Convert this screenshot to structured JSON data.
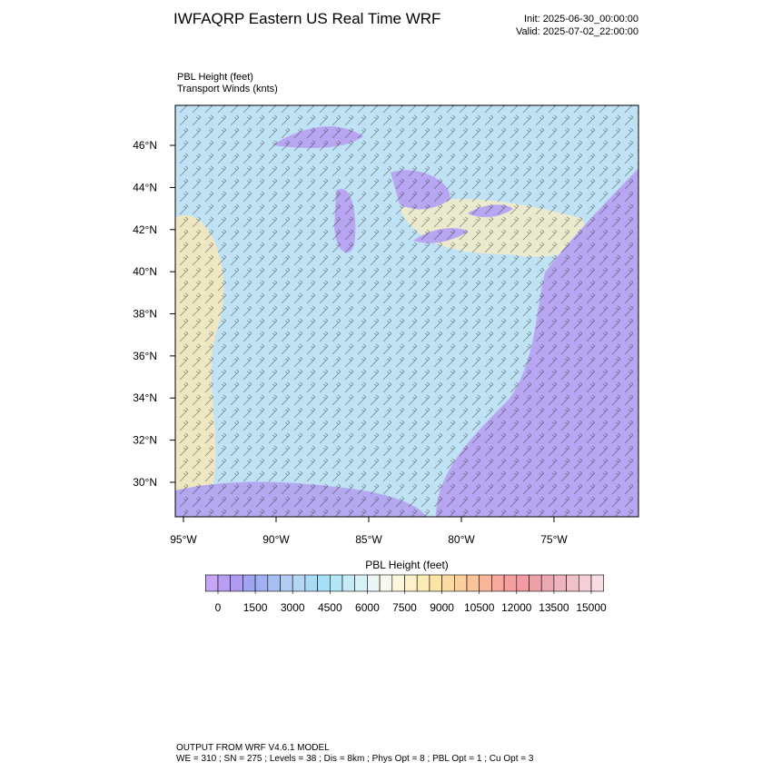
{
  "header": {
    "title": "IWFAQRP Eastern US Real Time WRF",
    "init": "Init: 2025-06-30_00:00:00",
    "valid": "Valid: 2025-07-02_22:00:00"
  },
  "map": {
    "field_label": "PBL Height   (feet)",
    "wind_label": "Transport Winds   (knts)",
    "xlim": [
      -95.44,
      -70.44
    ],
    "ylim": [
      28.36,
      47.9
    ],
    "xticks": [
      {
        "value": -95,
        "label": "95°W"
      },
      {
        "value": -90,
        "label": "90°W"
      },
      {
        "value": -85,
        "label": "85°W"
      },
      {
        "value": -80,
        "label": "80°W"
      },
      {
        "value": -75,
        "label": "75°W"
      }
    ],
    "yticks": [
      {
        "value": 30,
        "label": "30°N"
      },
      {
        "value": 32,
        "label": "32°N"
      },
      {
        "value": 34,
        "label": "34°N"
      },
      {
        "value": 36,
        "label": "36°N"
      },
      {
        "value": 38,
        "label": "38°N"
      },
      {
        "value": 40,
        "label": "40°N"
      },
      {
        "value": 42,
        "label": "42°N"
      },
      {
        "value": 44,
        "label": "44°N"
      },
      {
        "value": 46,
        "label": "46°N"
      }
    ]
  },
  "colorbar": {
    "title": "PBL Height  (feet)",
    "ticks": [
      0,
      1500,
      3000,
      4500,
      6000,
      7500,
      9000,
      10500,
      12000,
      13500,
      15000
    ],
    "colors": [
      "#c6a6f5",
      "#b99df3",
      "#ad9cf2",
      "#a1a3f3",
      "#a2b0f2",
      "#a9bff3",
      "#b2ccf4",
      "#b5d6f5",
      "#a9daf6",
      "#a4e0f7",
      "#b3e6f6",
      "#c5ecf6",
      "#d8f1f6",
      "#ebf6f6",
      "#f7f8ee",
      "#fbf6dd",
      "#fcf1c8",
      "#fbebb6",
      "#fbe4a6",
      "#fbdca0",
      "#fbd09c",
      "#fac39a",
      "#f9b69a",
      "#f8a99b",
      "#f69f9f",
      "#f29ba2",
      "#eea0a9",
      "#eca8b2",
      "#edb4bd",
      "#f0c1c9",
      "#f4cfd6",
      "#f8dde2"
    ]
  },
  "footer": {
    "line1": "OUTPUT FROM WRF V4.6.1 MODEL",
    "line2": "WE = 310 ; SN = 275 ; Levels = 38 ; Dis = 8km ; Phys Opt = 8 ; PBL Opt = 1 ; Cu Opt = 3"
  }
}
